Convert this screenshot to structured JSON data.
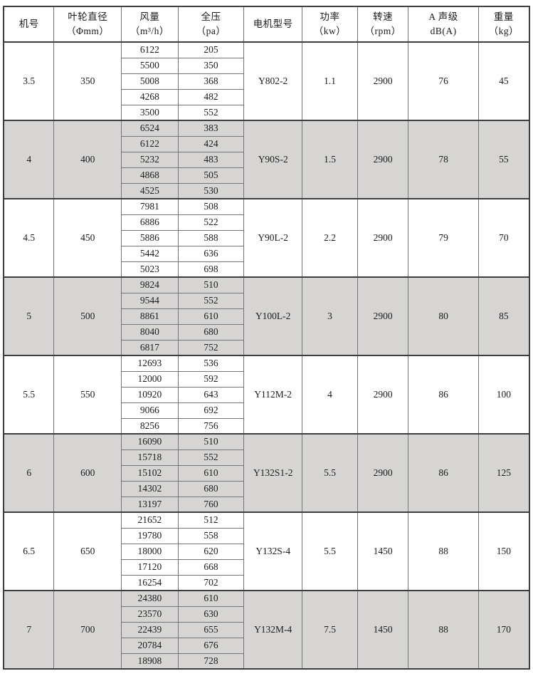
{
  "table": {
    "columns": [
      {
        "line1": "机号",
        "line2": ""
      },
      {
        "line1": "叶轮直径",
        "line2": "（Φmm）"
      },
      {
        "line1": "风量",
        "line2": "（m³/h）"
      },
      {
        "line1": "全压",
        "line2": "（pa）"
      },
      {
        "line1": "电机型号",
        "line2": ""
      },
      {
        "line1": "功率",
        "line2": "（kw）"
      },
      {
        "line1": "转速",
        "line2": "（rpm）"
      },
      {
        "line1": "A 声级",
        "line2": "dB(A)"
      },
      {
        "line1": "重量",
        "line2": "（kg）"
      }
    ],
    "groups": [
      {
        "size": "3.5",
        "diameter": "350",
        "motor": "Y802-2",
        "power": "1.1",
        "speed": "2900",
        "noise": "76",
        "weight": "45",
        "shaded": false,
        "points": [
          [
            "6122",
            "205"
          ],
          [
            "5500",
            "350"
          ],
          [
            "5008",
            "368"
          ],
          [
            "4268",
            "482"
          ],
          [
            "3500",
            "552"
          ]
        ]
      },
      {
        "size": "4",
        "diameter": "400",
        "motor": "Y90S-2",
        "power": "1.5",
        "speed": "2900",
        "noise": "78",
        "weight": "55",
        "shaded": true,
        "points": [
          [
            "6524",
            "383"
          ],
          [
            "6122",
            "424"
          ],
          [
            "5232",
            "483"
          ],
          [
            "4868",
            "505"
          ],
          [
            "4525",
            "530"
          ]
        ]
      },
      {
        "size": "4.5",
        "diameter": "450",
        "motor": "Y90L-2",
        "power": "2.2",
        "speed": "2900",
        "noise": "79",
        "weight": "70",
        "shaded": false,
        "points": [
          [
            "7981",
            "508"
          ],
          [
            "6886",
            "522"
          ],
          [
            "5886",
            "588"
          ],
          [
            "5442",
            "636"
          ],
          [
            "5023",
            "698"
          ]
        ]
      },
      {
        "size": "5",
        "diameter": "500",
        "motor": "Y100L-2",
        "power": "3",
        "speed": "2900",
        "noise": "80",
        "weight": "85",
        "shaded": true,
        "points": [
          [
            "9824",
            "510"
          ],
          [
            "9544",
            "552"
          ],
          [
            "8861",
            "610"
          ],
          [
            "8040",
            "680"
          ],
          [
            "6817",
            "752"
          ]
        ]
      },
      {
        "size": "5.5",
        "diameter": "550",
        "motor": "Y112M-2",
        "power": "4",
        "speed": "2900",
        "noise": "86",
        "weight": "100",
        "shaded": false,
        "points": [
          [
            "12693",
            "536"
          ],
          [
            "12000",
            "592"
          ],
          [
            "10920",
            "643"
          ],
          [
            "9066",
            "692"
          ],
          [
            "8256",
            "756"
          ]
        ]
      },
      {
        "size": "6",
        "diameter": "600",
        "motor": "Y132S1-2",
        "power": "5.5",
        "speed": "2900",
        "noise": "86",
        "weight": "125",
        "shaded": true,
        "points": [
          [
            "16090",
            "510"
          ],
          [
            "15718",
            "552"
          ],
          [
            "15102",
            "610"
          ],
          [
            "14302",
            "680"
          ],
          [
            "13197",
            "760"
          ]
        ]
      },
      {
        "size": "6.5",
        "diameter": "650",
        "motor": "Y132S-4",
        "power": "5.5",
        "speed": "1450",
        "noise": "88",
        "weight": "150",
        "shaded": false,
        "points": [
          [
            "21652",
            "512"
          ],
          [
            "19780",
            "558"
          ],
          [
            "18000",
            "620"
          ],
          [
            "17120",
            "668"
          ],
          [
            "16254",
            "702"
          ]
        ]
      },
      {
        "size": "7",
        "diameter": "700",
        "motor": "Y132M-4",
        "power": "7.5",
        "speed": "1450",
        "noise": "88",
        "weight": "170",
        "shaded": true,
        "points": [
          [
            "24380",
            "610"
          ],
          [
            "23570",
            "630"
          ],
          [
            "22439",
            "655"
          ],
          [
            "20784",
            "676"
          ],
          [
            "18908",
            "728"
          ]
        ]
      }
    ]
  },
  "colors": {
    "shaded_row": "#d6d5d3",
    "border_dark": "#3d3d3d",
    "border_light": "#757575",
    "text": "#1b1b1b"
  }
}
